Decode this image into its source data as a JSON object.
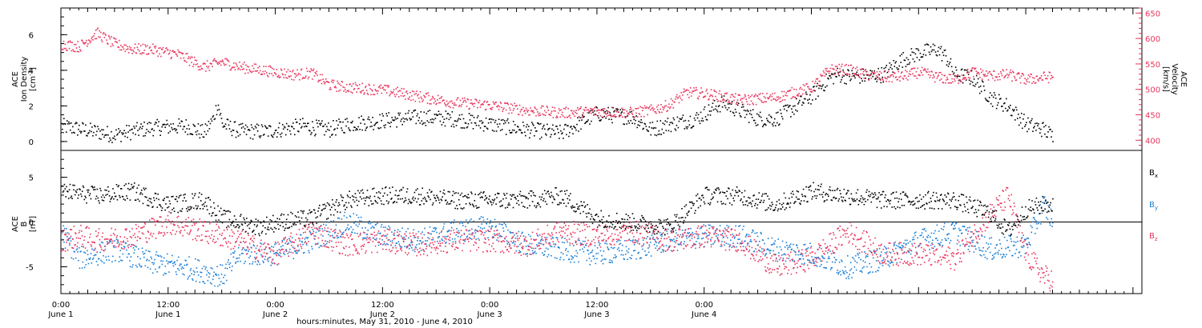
{
  "chart_data": [
    {
      "type": "scatter",
      "panel": "top",
      "left_axis": {
        "label_lines": [
          "ACE",
          "Ion Density"
        ],
        "unit_base": "[cm",
        "unit_sup": "-3",
        "unit_end": "]",
        "range": [
          -0.5,
          7.5
        ],
        "ticks": [
          "0",
          "2",
          "4",
          "6"
        ],
        "color": "#000000"
      },
      "right_axis": {
        "label_lines": [
          "ACE",
          "Velocity"
        ],
        "unit": "[km/s]",
        "range": [
          380,
          660
        ],
        "ticks": [
          "400",
          "450",
          "500",
          "550",
          "600",
          "650"
        ],
        "color": "#e8365d"
      },
      "series": [
        {
          "color": "#000000",
          "axis": "left",
          "x_hours": [
            0,
            6,
            10,
            14,
            16,
            17,
            17.5,
            18,
            20,
            23,
            27,
            30,
            32,
            36,
            40,
            44,
            48,
            52,
            56,
            60,
            64,
            66,
            68,
            71,
            74,
            78,
            80,
            84,
            86,
            87,
            88,
            90,
            92,
            94,
            96,
            98,
            99,
            100,
            102,
            104,
            106,
            108,
            110,
            111
          ],
          "y": [
            0.9,
            0.4,
            0.8,
            0.9,
            0.5,
            1.3,
            2.2,
            1.0,
            0.6,
            0.6,
            0.9,
            0.7,
            1.0,
            1.2,
            1.4,
            1.3,
            1.0,
            0.7,
            0.5,
            1.6,
            1.4,
            0.7,
            1.0,
            1.3,
            2.2,
            1.3,
            1.3,
            2.6,
            3.6,
            3.8,
            3.7,
            3.7,
            3.8,
            4.6,
            5.0,
            5.2,
            4.8,
            3.8,
            3.6,
            2.5,
            2.0,
            1.0,
            0.7,
            0.3
          ]
        },
        {
          "color": "#e8365d",
          "axis": "right",
          "x_hours": [
            0,
            2,
            4,
            5,
            6,
            8,
            10,
            13,
            16,
            18,
            20,
            22,
            24,
            26,
            28,
            30,
            32,
            36,
            40,
            44,
            48,
            50,
            52,
            56,
            60,
            64,
            66,
            68,
            70,
            72,
            76,
            80,
            83,
            84,
            86,
            88,
            90,
            92,
            94,
            96,
            98,
            100,
            102,
            104,
            106,
            108,
            110,
            111
          ],
          "y": [
            590,
            585,
            612,
            600,
            590,
            580,
            580,
            570,
            545,
            555,
            545,
            540,
            535,
            530,
            533,
            510,
            505,
            500,
            487,
            475,
            470,
            465,
            460,
            455,
            458,
            455,
            460,
            470,
            495,
            493,
            480,
            485,
            500,
            505,
            540,
            540,
            530,
            525,
            526,
            535,
            525,
            520,
            535,
            528,
            530,
            520,
            525,
            525
          ]
        }
      ]
    },
    {
      "type": "scatter",
      "panel": "bottom",
      "left_axis": {
        "label_lines": [
          "ACE",
          "B"
        ],
        "unit": "[nT]",
        "range": [
          -8,
          8
        ],
        "ticks": [
          "-5",
          "0",
          "5"
        ],
        "color": "#000000"
      },
      "legend": [
        {
          "base": "B",
          "sub": "x",
          "color": "#000000"
        },
        {
          "base": "B",
          "sub": "y",
          "color": "#1a7fd6"
        },
        {
          "base": "B",
          "sub": "z",
          "color": "#e8365d"
        }
      ],
      "series": [
        {
          "name": "Bx",
          "color": "#000000",
          "x_hours": [
            0,
            4,
            8,
            12,
            16,
            18,
            20,
            22,
            24,
            28,
            32,
            36,
            40,
            44,
            48,
            52,
            56,
            60,
            64,
            68,
            72,
            76,
            80,
            84,
            88,
            92,
            96,
            100,
            104,
            106,
            108,
            110,
            111
          ],
          "y": [
            3.5,
            3.0,
            3.5,
            2.0,
            2.5,
            0.5,
            0,
            -0.5,
            0,
            0.5,
            2.5,
            3.0,
            3.0,
            2.5,
            2.5,
            2.5,
            3.0,
            0.5,
            0,
            -0.5,
            3.0,
            3.0,
            2.0,
            3.5,
            3.0,
            2.5,
            2.5,
            2.5,
            1.0,
            -1.0,
            1.5,
            2.0,
            2.0
          ]
        },
        {
          "name": "By",
          "color": "#1a7fd6",
          "x_hours": [
            0,
            2,
            6,
            10,
            14,
            16,
            18,
            20,
            24,
            28,
            32,
            36,
            40,
            44,
            48,
            52,
            56,
            60,
            64,
            68,
            72,
            76,
            80,
            84,
            88,
            92,
            96,
            100,
            104,
            108,
            110,
            111
          ],
          "y": [
            -1.0,
            -4.0,
            -3.0,
            -4.5,
            -5.0,
            -5.5,
            -6.0,
            -3.5,
            -3.5,
            -2.0,
            0,
            -1.5,
            -2.0,
            -1.0,
            -0.5,
            -2.5,
            -3.0,
            -3.5,
            -3.0,
            -2.0,
            -1.5,
            -1.5,
            -3.0,
            -3.5,
            -5.0,
            -4.0,
            -2.0,
            -1.0,
            -3.0,
            -2.5,
            2.0,
            0
          ]
        },
        {
          "name": "Bz",
          "color": "#e8365d",
          "x_hours": [
            0,
            2,
            4,
            8,
            12,
            16,
            20,
            22,
            24,
            28,
            32,
            36,
            40,
            44,
            48,
            52,
            56,
            60,
            64,
            68,
            72,
            76,
            80,
            84,
            88,
            92,
            96,
            100,
            104,
            106,
            108,
            110,
            111
          ],
          "y": [
            -2.0,
            -1.5,
            -2.0,
            -1.5,
            0,
            -1.0,
            -2.0,
            -3.0,
            -3.5,
            -1.0,
            -2.5,
            -2.0,
            -2.5,
            -2.0,
            -2.0,
            -2.5,
            -1.0,
            -1.5,
            -1.0,
            -2.0,
            -1.5,
            -2.0,
            -5.0,
            -4.0,
            -1.0,
            -3.5,
            -3.5,
            -4.0,
            1.0,
            3.0,
            -3.5,
            -6.0,
            -6.5
          ]
        }
      ]
    }
  ],
  "x_axis": {
    "range_hours": [
      0,
      121
    ],
    "ticks": [
      {
        "hour": 0,
        "time": "0:00",
        "date": "June 1"
      },
      {
        "hour": 12,
        "time": "12:00",
        "date": "June 1"
      },
      {
        "hour": 24,
        "time": "0:00",
        "date": "June 2"
      },
      {
        "hour": 36,
        "time": "12:00",
        "date": "June 2"
      },
      {
        "hour": 48,
        "time": "0:00",
        "date": "June 3"
      },
      {
        "hour": 60,
        "time": "12:00",
        "date": "June 3"
      },
      {
        "hour": 72,
        "time": "0:00",
        "date": "June 4"
      }
    ],
    "label": "hours:minutes, May 31, 2010 - June  4, 2010"
  }
}
